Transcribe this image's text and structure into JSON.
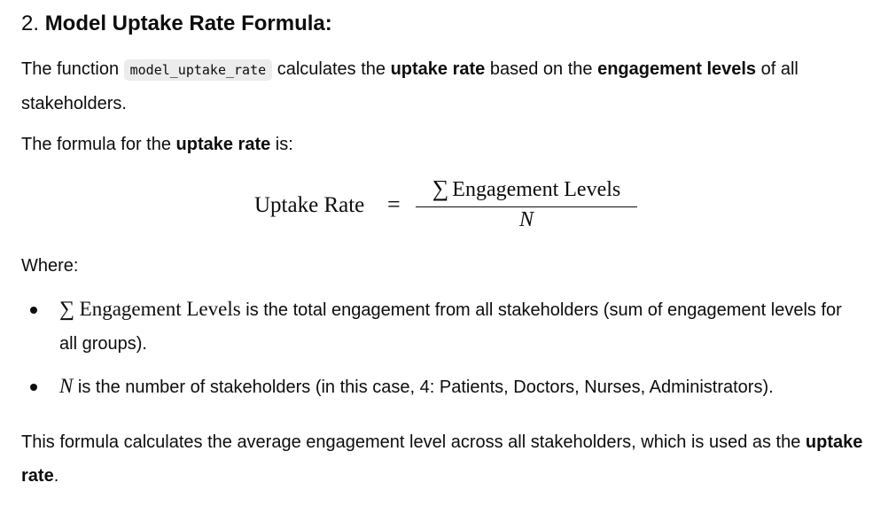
{
  "heading": {
    "number": "2.",
    "title": "Model Uptake Rate Formula:"
  },
  "intro": {
    "prefix": "The function ",
    "code": "model_uptake_rate",
    "mid1": " calculates the ",
    "bold1": "uptake rate",
    "mid2": " based on the ",
    "bold2": "engagement levels",
    "suffix": " of all stakeholders."
  },
  "formula_intro": {
    "prefix": "The formula for the ",
    "bold": "uptake rate",
    "suffix": " is:"
  },
  "formula": {
    "lhs": "Uptake Rate",
    "equals": "=",
    "sigma": "∑",
    "numerator": "Engagement Levels",
    "denominator": "N"
  },
  "where_label": "Where:",
  "bullets": [
    {
      "sigma": "∑",
      "math": "Engagement Levels",
      "text": " is the total engagement from all stakeholders (sum of engagement levels for all groups)."
    },
    {
      "math": "N",
      "text": " is the number of stakeholders (in this case, 4: Patients, Doctors, Nurses, Administrators)."
    }
  ],
  "conclusion": {
    "text": "This formula calculates the average engagement level across all stakeholders, which is used as the ",
    "bold": "uptake rate",
    "suffix": "."
  }
}
